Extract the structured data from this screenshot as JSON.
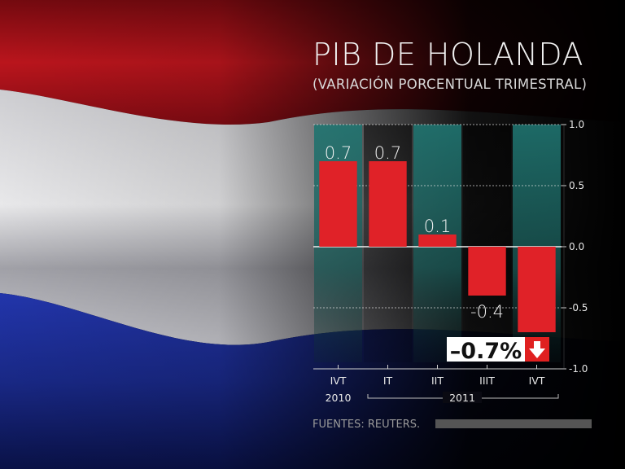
{
  "title": "PIB DE HOLANDA",
  "subtitle": "(VARIACIÓN PORCENTUAL TRIMESTRAL)",
  "source": "FUENTES: REUTERS.",
  "callout": {
    "text": "–0.7%",
    "icon": "down-arrow-icon",
    "color": "#e02020"
  },
  "colors": {
    "bar": "#e02228",
    "teal": "#1d6e6a",
    "flag_red": "#b0101a",
    "flag_white": "#e8e8ea",
    "flag_blue": "#1b2f9a"
  },
  "chart_data": {
    "type": "bar",
    "title": "PIB DE HOLANDA",
    "subtitle": "(VARIACIÓN PORCENTUAL TRIMESTRAL)",
    "categories": [
      "IVT",
      "IT",
      "IIT",
      "IIIT",
      "IVT"
    ],
    "years": [
      {
        "label": "2010",
        "from": 0,
        "to": 0
      },
      {
        "label": "2011",
        "from": 1,
        "to": 4
      }
    ],
    "values": [
      0.7,
      0.7,
      0.1,
      -0.4,
      -0.7
    ],
    "data_labels": [
      "0.7",
      "0.7",
      "0.1",
      "-0.4",
      ""
    ],
    "ylim": [
      -1.0,
      1.0
    ],
    "yticks": [
      1.0,
      0.5,
      0.0,
      -0.5,
      -1.0
    ],
    "ytick_labels": [
      "1.0",
      "0.5",
      "0.0",
      "-0.5",
      "-1.0"
    ],
    "xlabel": "",
    "ylabel": "",
    "grid": true,
    "legend": "none"
  }
}
